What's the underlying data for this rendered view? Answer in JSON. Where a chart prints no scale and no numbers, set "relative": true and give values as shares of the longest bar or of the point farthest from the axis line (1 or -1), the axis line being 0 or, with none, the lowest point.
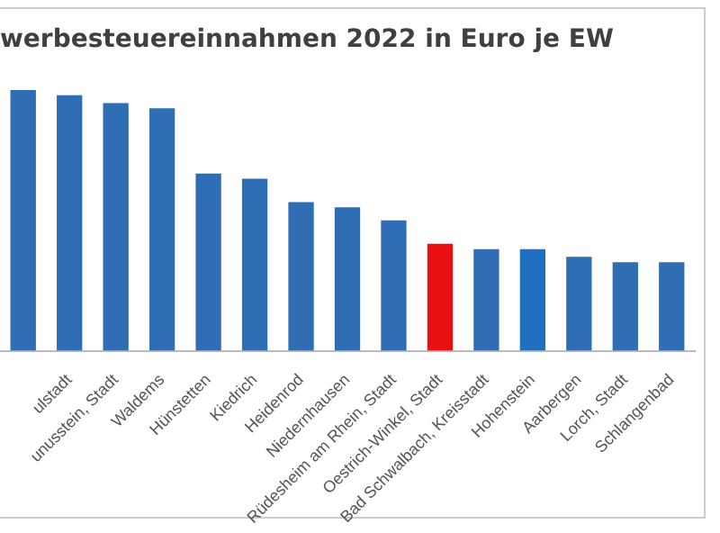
{
  "chart_data": {
    "type": "bar",
    "title": "werbesteuereinnahmen 2022 in Euro je EW",
    "categories": [
      null,
      "ulstadt",
      "unusstein, Stadt",
      "Waldems",
      "Hünstetten",
      "Kiedrich",
      "Heidenrod",
      "Niedernhausen",
      "Rüdesheim am Rhein, Stadt",
      "Oestrich-Winkel, Stadt",
      "Bad Schwalbach, Kreisstadt",
      "Hohenstein",
      "Aarbergen",
      "Lorch, Stadt",
      "Schlangenbad"
    ],
    "values": [
      1,
      0.98,
      0.95,
      0.93,
      0.68,
      0.66,
      0.57,
      0.55,
      0.5,
      0.41,
      0.39,
      0.39,
      0.36,
      0.34,
      0.34
    ],
    "colors": [
      "#2f6db5",
      "#2f6db5",
      "#2f6db5",
      "#2f6db5",
      "#2f6db5",
      "#2f6db5",
      "#2f6db5",
      "#2f6db5",
      "#2f6db5",
      "#e81010",
      "#2f6db5",
      "#1f6fc0",
      "#2f6db5",
      "#2f6db5",
      "#2f6db5"
    ],
    "relative": true,
    "legend": false
  }
}
